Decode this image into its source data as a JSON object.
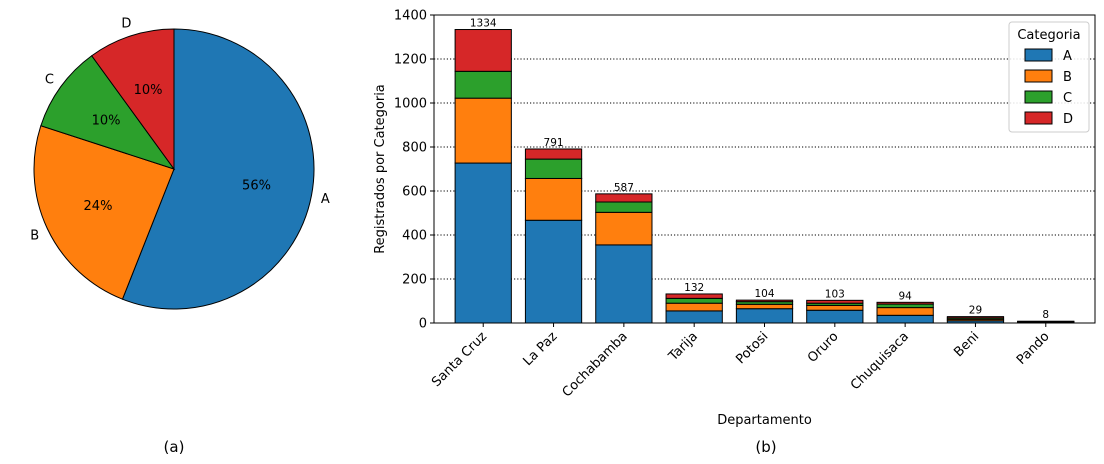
{
  "panels": {
    "a_label": "(a)",
    "b_label": "(b)"
  },
  "colors": {
    "A": "#1f77b4",
    "B": "#ff7f0e",
    "C": "#2ca02c",
    "D": "#d62728"
  },
  "chart_data": [
    {
      "type": "pie",
      "labels": [
        "A",
        "B",
        "C",
        "D"
      ],
      "values": [
        56,
        24,
        10,
        10
      ],
      "pct_labels": [
        "56%",
        "24%",
        "10%",
        "10%"
      ],
      "start_angle_deg": 90,
      "direction": "clockwise"
    },
    {
      "type": "bar",
      "stacked": true,
      "categories": [
        "Santa Cruz",
        "La Paz",
        "Cochabamba",
        "Tarija",
        "Potosi",
        "Oruro",
        "Chuquisaca",
        "Beni",
        "Pando"
      ],
      "series": [
        {
          "name": "A",
          "values": [
            727,
            467,
            355,
            55,
            65,
            58,
            35,
            10,
            3
          ]
        },
        {
          "name": "B",
          "values": [
            295,
            190,
            148,
            35,
            20,
            22,
            35,
            7,
            2
          ]
        },
        {
          "name": "C",
          "values": [
            122,
            88,
            47,
            22,
            12,
            10,
            16,
            6,
            2
          ]
        },
        {
          "name": "D",
          "values": [
            190,
            46,
            37,
            20,
            7,
            13,
            8,
            6,
            1
          ]
        }
      ],
      "totals": [
        1334,
        791,
        587,
        132,
        104,
        103,
        94,
        29,
        8
      ],
      "total_labels": [
        "1334",
        "791",
        "587",
        "132",
        "104",
        "103",
        "94",
        "29",
        "8"
      ],
      "xlabel": "Departamento",
      "ylabel": "Registrados por Categoria",
      "ylim": [
        0,
        1400
      ],
      "yticks": [
        0,
        200,
        400,
        600,
        800,
        1000,
        1200,
        1400
      ],
      "grid": "y-dotted",
      "legend": {
        "title": "Categoria",
        "placement": "top-right",
        "entries": [
          "A",
          "B",
          "C",
          "D"
        ]
      }
    }
  ]
}
